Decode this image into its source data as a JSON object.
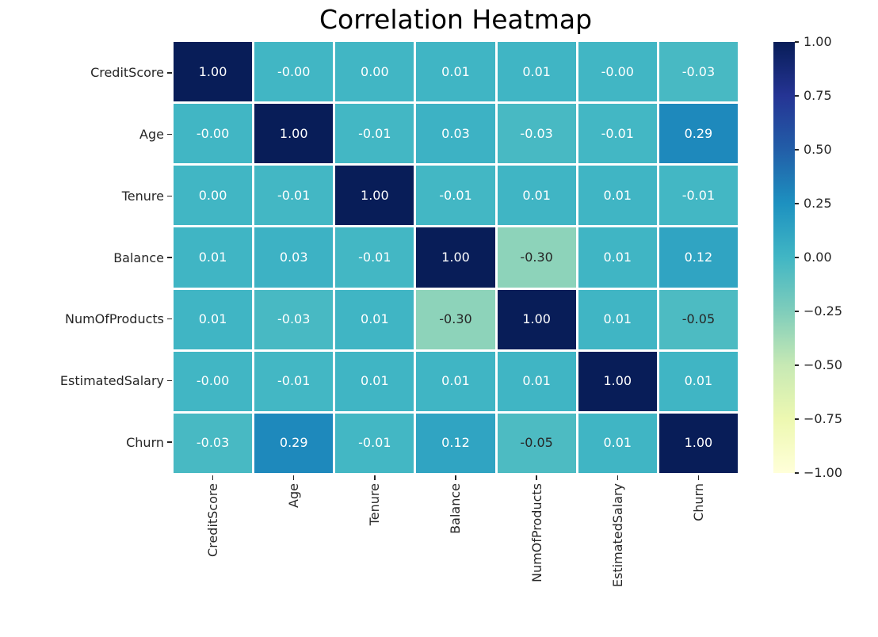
{
  "figure": {
    "background": "#ffffff"
  },
  "chart_data": {
    "type": "heatmap",
    "title": "Correlation Heatmap",
    "categories": [
      "CreditScore",
      "Age",
      "Tenure",
      "Balance",
      "NumOfProducts",
      "EstimatedSalary",
      "Churn"
    ],
    "matrix": [
      [
        1.0,
        -0.0,
        0.0,
        0.01,
        0.01,
        -0.0,
        -0.03
      ],
      [
        -0.0,
        1.0,
        -0.01,
        0.03,
        -0.03,
        -0.01,
        0.29
      ],
      [
        0.0,
        -0.01,
        1.0,
        -0.01,
        0.01,
        0.01,
        -0.01
      ],
      [
        0.01,
        0.03,
        -0.01,
        1.0,
        -0.3,
        0.01,
        0.12
      ],
      [
        0.01,
        -0.03,
        0.01,
        -0.3,
        1.0,
        0.01,
        -0.05
      ],
      [
        -0.0,
        -0.01,
        0.01,
        0.01,
        0.01,
        1.0,
        0.01
      ],
      [
        -0.03,
        0.29,
        -0.01,
        0.12,
        -0.05,
        0.01,
        1.0
      ]
    ],
    "matrix_text": [
      [
        "1.00",
        "-0.00",
        "0.00",
        "0.01",
        "0.01",
        "-0.00",
        "-0.03"
      ],
      [
        "-0.00",
        "1.00",
        "-0.01",
        "0.03",
        "-0.03",
        "-0.01",
        "0.29"
      ],
      [
        "0.00",
        "-0.01",
        "1.00",
        "-0.01",
        "0.01",
        "0.01",
        "-0.01"
      ],
      [
        "0.01",
        "0.03",
        "-0.01",
        "1.00",
        "-0.30",
        "0.01",
        "0.12"
      ],
      [
        "0.01",
        "-0.03",
        "0.01",
        "-0.30",
        "1.00",
        "0.01",
        "-0.05"
      ],
      [
        "-0.00",
        "-0.01",
        "0.01",
        "0.01",
        "0.01",
        "1.00",
        "0.01"
      ],
      [
        "-0.03",
        "0.29",
        "-0.01",
        "0.12",
        "-0.05",
        "0.01",
        "1.00"
      ]
    ],
    "vmin": -1,
    "vmax": 1,
    "colormap": {
      "name": "YlGnBu",
      "anchors": [
        [
          0,
          "#ffffd9"
        ],
        [
          0.125,
          "#edf8b1"
        ],
        [
          0.25,
          "#c7e9b4"
        ],
        [
          0.375,
          "#7fcdbb"
        ],
        [
          0.5,
          "#41b6c4"
        ],
        [
          0.625,
          "#1d91c0"
        ],
        [
          0.75,
          "#225ea8"
        ],
        [
          0.875,
          "#253494"
        ],
        [
          1,
          "#081d58"
        ]
      ]
    },
    "colorbar": {
      "position": "right",
      "tick_labels": [
        "1.00",
        "0.75",
        "0.50",
        "0.25",
        "0.00",
        "−0.25",
        "−0.50",
        "−0.75",
        "−1.00"
      ]
    },
    "annot_colors": {
      "on_dark_cell": "#ffffff",
      "on_light_cell": "#262626"
    },
    "axis_text_color": "#262626",
    "grid_line_color": "#ffffff",
    "legend": "none",
    "grid": "off"
  }
}
